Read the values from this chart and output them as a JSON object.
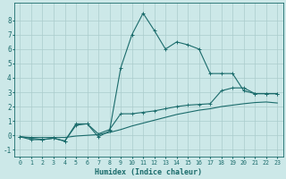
{
  "xlabel": "Humidex (Indice chaleur)",
  "background_color": "#cce8e8",
  "grid_color": "#aacccc",
  "line_color": "#1a6b6b",
  "xlim": [
    -0.5,
    23.5
  ],
  "ylim": [
    -1.5,
    9.2
  ],
  "yticks": [
    -1,
    0,
    1,
    2,
    3,
    4,
    5,
    6,
    7,
    8
  ],
  "xticks": [
    0,
    1,
    2,
    3,
    4,
    5,
    6,
    7,
    8,
    9,
    10,
    11,
    12,
    13,
    14,
    15,
    16,
    17,
    18,
    19,
    20,
    21,
    22,
    23
  ],
  "line1_x": [
    0,
    1,
    2,
    3,
    4,
    5,
    6,
    7,
    8,
    9,
    10,
    11,
    12,
    13,
    14,
    15,
    16,
    17,
    18,
    19,
    20,
    21,
    22,
    23
  ],
  "line1_y": [
    -0.1,
    -0.3,
    -0.3,
    -0.2,
    -0.4,
    0.7,
    0.8,
    -0.1,
    0.3,
    4.7,
    7.0,
    8.5,
    7.3,
    6.0,
    6.5,
    6.3,
    6.0,
    4.3,
    4.3,
    4.3,
    3.1,
    2.9,
    2.9,
    2.9
  ],
  "line2_x": [
    0,
    1,
    2,
    3,
    4,
    5,
    6,
    7,
    8,
    9,
    10,
    11,
    12,
    13,
    14,
    15,
    16,
    17,
    18,
    19,
    20,
    21,
    22,
    23
  ],
  "line2_y": [
    -0.1,
    -0.15,
    -0.15,
    -0.15,
    -0.15,
    -0.05,
    0.0,
    0.05,
    0.2,
    0.4,
    0.65,
    0.85,
    1.05,
    1.25,
    1.45,
    1.6,
    1.75,
    1.85,
    2.0,
    2.1,
    2.2,
    2.28,
    2.32,
    2.25
  ],
  "line3_x": [
    0,
    1,
    2,
    3,
    4,
    5,
    6,
    7,
    8,
    9,
    10,
    11,
    12,
    13,
    14,
    15,
    16,
    17,
    18,
    19,
    20,
    21,
    22,
    23
  ],
  "line3_y": [
    -0.1,
    -0.2,
    -0.3,
    -0.2,
    -0.4,
    0.8,
    0.8,
    0.1,
    0.4,
    1.5,
    1.5,
    1.6,
    1.7,
    1.85,
    2.0,
    2.1,
    2.15,
    2.2,
    3.1,
    3.3,
    3.3,
    2.9,
    2.9,
    2.9
  ]
}
